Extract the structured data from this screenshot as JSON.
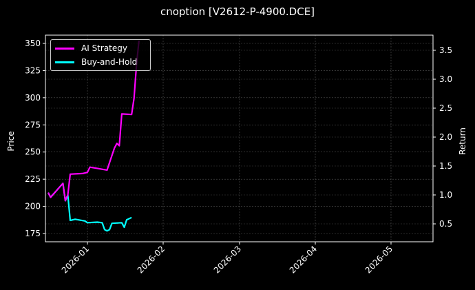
{
  "chart_data": {
    "type": "line",
    "title": "cnoption [V2612-P-4900.DCE]",
    "xlabel": "",
    "ylabel": "Price",
    "y2label": "Return",
    "x_ticks": [
      "2026-01",
      "2026-02",
      "2026-03",
      "2026-04",
      "2026-05"
    ],
    "y_ticks": [
      175,
      200,
      225,
      250,
      275,
      300,
      325,
      350
    ],
    "y2_ticks": [
      0.5,
      1.0,
      1.5,
      2.0,
      2.5,
      3.0,
      3.5
    ],
    "ylim": [
      166,
      357
    ],
    "y2lim": [
      0.2,
      3.7
    ],
    "grid": true,
    "legend_position": "upper left",
    "series": [
      {
        "name": "AI Strategy",
        "color": "#ff00ff",
        "axis": "y2",
        "x": [
          "2025-12-16",
          "2025-12-17",
          "2025-12-22",
          "2025-12-23",
          "2025-12-24",
          "2025-12-25",
          "2025-12-30",
          "2026-01-01",
          "2026-01-02",
          "2026-01-05",
          "2026-01-09",
          "2026-01-12",
          "2026-01-13",
          "2026-01-14",
          "2026-01-15",
          "2026-01-19",
          "2026-01-20",
          "2026-01-21",
          "2026-01-22"
        ],
        "values": [
          1.04,
          0.96,
          1.2,
          0.9,
          1.0,
          1.36,
          1.37,
          1.39,
          1.48,
          1.46,
          1.43,
          1.81,
          1.89,
          1.85,
          2.4,
          2.39,
          2.67,
          3.25,
          3.67
        ]
      },
      {
        "name": "Buy-and-Hold",
        "color": "#00ffff",
        "axis": "y2",
        "x": [
          "2025-12-16",
          "2025-12-17",
          "2025-12-22",
          "2025-12-23",
          "2025-12-24",
          "2025-12-25",
          "2025-12-27",
          "2025-12-31",
          "2026-01-01",
          "2026-01-05",
          "2026-01-07",
          "2026-01-08",
          "2026-01-09",
          "2026-01-10",
          "2026-01-11",
          "2026-01-15",
          "2026-01-16",
          "2026-01-17",
          "2026-01-19"
        ],
        "values": [
          1.04,
          0.96,
          1.2,
          0.9,
          1.0,
          0.56,
          0.58,
          0.55,
          0.52,
          0.53,
          0.52,
          0.4,
          0.38,
          0.4,
          0.51,
          0.52,
          0.44,
          0.57,
          0.61
        ]
      }
    ]
  },
  "legend": {
    "items": [
      {
        "label": "AI Strategy",
        "color": "#ff00ff"
      },
      {
        "label": "Buy-and-Hold",
        "color": "#00ffff"
      }
    ]
  },
  "axes": {
    "left_label": "Price",
    "right_label": "Return"
  }
}
